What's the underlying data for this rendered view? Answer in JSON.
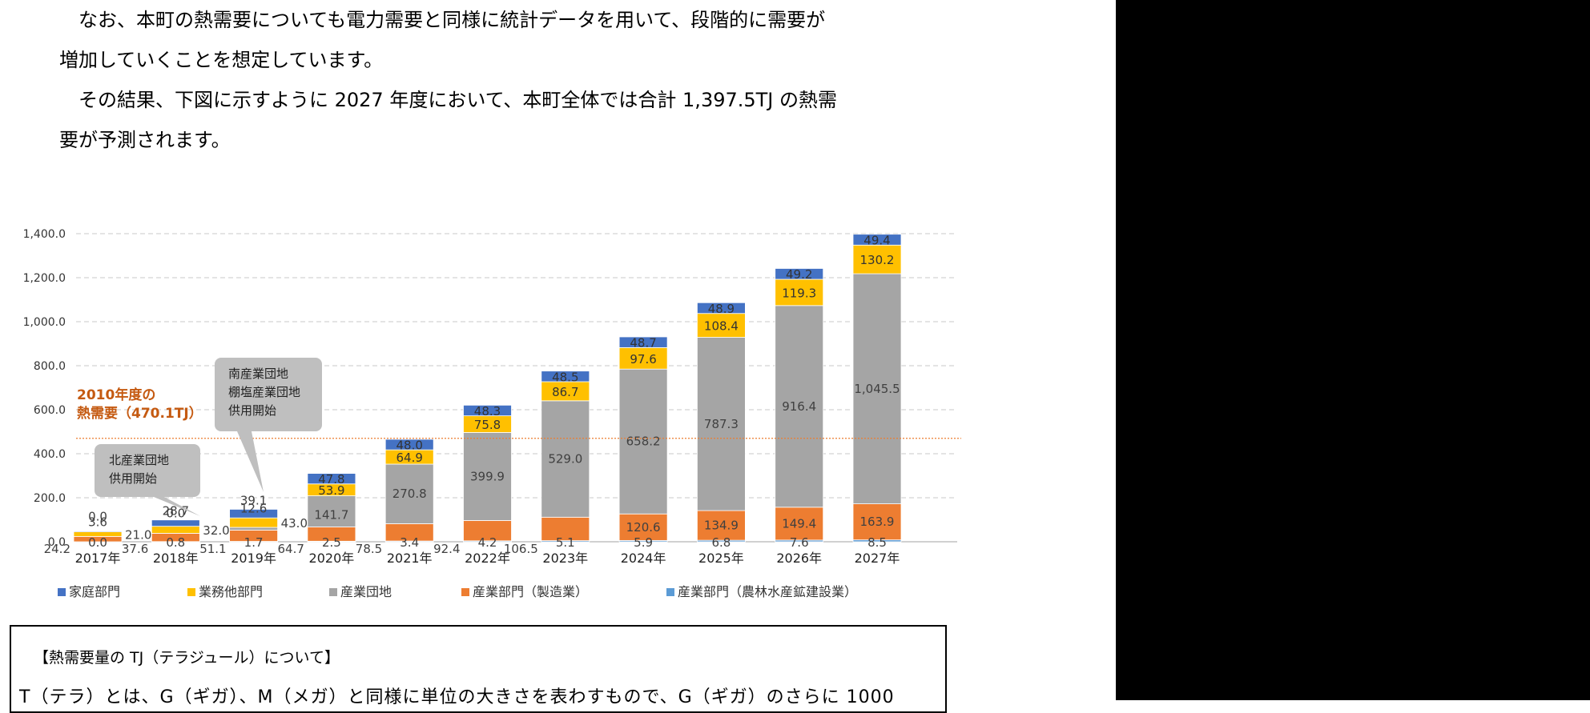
{
  "text": {
    "para1_line1": "なお、本町の熱需要についても電力需要と同様に統計データを用いて、段階的に需要が",
    "para1_line2": "増加していくことを想定しています。",
    "para2_line1": "その結果、下図に示すように 2027 年度において、本町全体では合計 1,397.5TJ の熱需",
    "para2_line2": "要が予測されます。"
  },
  "info_box": {
    "title": "【熱需要量の TJ（テラジュール）について】",
    "body": "T（テラ）とは、G（ギガ）、M（メガ）と同様に単位の大きさを表わすもので、G（ギガ）のさらに 1000"
  },
  "chart_data": {
    "type": "bar",
    "stacked": true,
    "categories": [
      "2017年",
      "2018年",
      "2019年",
      "2020年",
      "2021年",
      "2022年",
      "2023年",
      "2024年",
      "2025年",
      "2026年",
      "2027年"
    ],
    "series": [
      {
        "name": "産業部門（農林水産鉱建設業）",
        "color": "#5b9bd5",
        "values": [
          0.0,
          0.8,
          1.7,
          2.5,
          3.4,
          4.2,
          5.1,
          5.9,
          6.8,
          7.6,
          8.5
        ]
      },
      {
        "name": "産業部門（製造業）",
        "color": "#ed7d31",
        "values": [
          24.2,
          37.6,
          51.1,
          64.7,
          78.5,
          92.4,
          106.5,
          120.6,
          134.9,
          149.4,
          163.9
        ]
      },
      {
        "name": "産業団地",
        "color": "#a5a5a5",
        "values": [
          0.0,
          0.0,
          12.6,
          141.7,
          270.8,
          399.9,
          529.0,
          658.2,
          787.3,
          916.4,
          1045.5
        ]
      },
      {
        "name": "業務他部門",
        "color": "#ffc000",
        "values": [
          21.0,
          32.0,
          43.0,
          53.9,
          64.9,
          75.8,
          86.7,
          97.6,
          108.4,
          119.3,
          130.2
        ]
      },
      {
        "name": "家庭部門",
        "color": "#4472c4",
        "values": [
          3.6,
          28.7,
          39.1,
          47.8,
          48.0,
          48.3,
          48.5,
          48.7,
          48.9,
          49.2,
          49.4
        ]
      }
    ],
    "legend_order": [
      "家庭部門",
      "業務他部門",
      "産業団地",
      "産業部門（製造業）",
      "産業部門（農林水産鉱建設業）"
    ],
    "yticks": [
      "0.0",
      "200.0",
      "400.0",
      "600.0",
      "800.0",
      "1,000.0",
      "1,200.0",
      "1,400.0"
    ],
    "ylim": [
      0,
      1400
    ],
    "grid": "dashed",
    "legend_position": "bottom",
    "reference_line": {
      "value": 470.1,
      "label_line1": "2010年度の",
      "label_line2": "熱需要（470.1TJ）",
      "color": "#ed7d31"
    },
    "callouts": [
      {
        "lines": [
          "北産業団地",
          "供用開始"
        ],
        "points_to": "2018年"
      },
      {
        "lines": [
          "南産業団地",
          "棚塩産業団地",
          "供用開始"
        ],
        "points_to": "2019年"
      }
    ]
  }
}
